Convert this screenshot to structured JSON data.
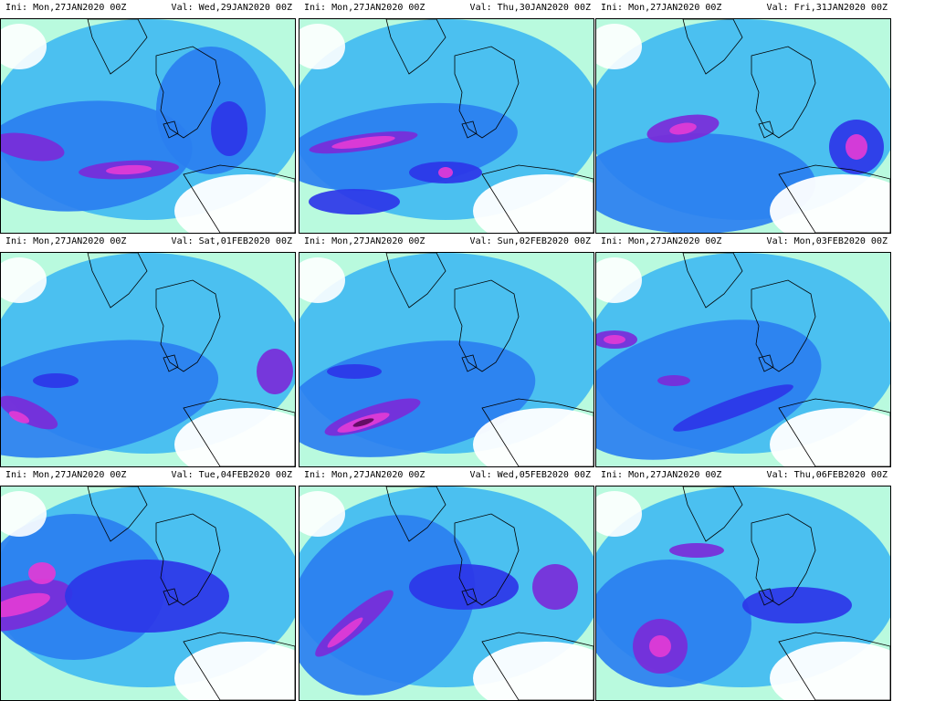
{
  "colors": {
    "land_outline": "#000000",
    "low": "#7ff5c3",
    "light": "#3fb9f2",
    "mid": "#2a7ff0",
    "strong": "#2d36e8",
    "high": "#7a2bd9",
    "extreme": "#e23bd6",
    "peak": "#5a0a5a"
  },
  "panels": [
    {
      "ini": "Ini: Mon,27JAN2020 00Z",
      "val": "Val: Wed,29JAN2020 00Z"
    },
    {
      "ini": "Ini: Mon,27JAN2020 00Z",
      "val": "Val: Thu,30JAN2020 00Z"
    },
    {
      "ini": "Ini: Mon,27JAN2020 00Z",
      "val": "Val: Fri,31JAN2020 00Z"
    },
    {
      "ini": "Ini: Mon,27JAN2020 00Z",
      "val": "Val: Sat,01FEB2020 00Z"
    },
    {
      "ini": "Ini: Mon,27JAN2020 00Z",
      "val": "Val: Sun,02FEB2020 00Z"
    },
    {
      "ini": "Ini: Mon,27JAN2020 00Z",
      "val": "Val: Mon,03FEB2020 00Z"
    },
    {
      "ini": "Ini: Mon,27JAN2020 00Z",
      "val": "Val: Tue,04FEB2020 00Z"
    },
    {
      "ini": "Ini: Mon,27JAN2020 00Z",
      "val": "Val: Wed,05FEB2020 00Z"
    },
    {
      "ini": "Ini: Mon,27JAN2020 00Z",
      "val": "Val: Thu,06FEB2020 00Z"
    }
  ]
}
